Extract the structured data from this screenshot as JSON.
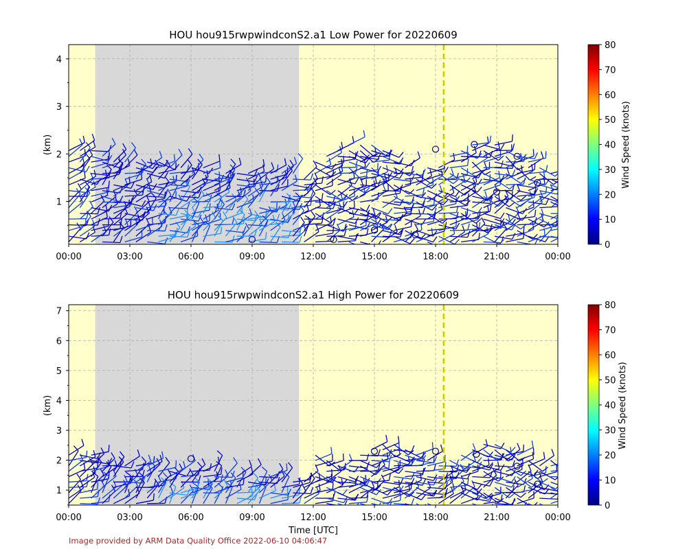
{
  "panels": [
    {
      "title": "HOU hou915rwpwindconS2.a1 Low Power for 20220609",
      "ylabel": "(km)",
      "colorbar_label": "Wind Speed (knots)"
    },
    {
      "title": "HOU hou915rwpwindconS2.a1 High Power for 20220609",
      "ylabel": "(km)",
      "colorbar_label": "Wind Speed (knots)"
    }
  ],
  "xlabel": "Time [UTC]",
  "credit": "Image provided by ARM Data Quality Office 2022-06-10 04:06:47",
  "colors": {
    "daylight": "#ffffcc",
    "night": "#d8d8d8",
    "marker_line": "#cccc00",
    "barb": "#0000cd"
  },
  "chart_data": [
    {
      "type": "wind_barbs",
      "title": "HOU hou915rwpwindconS2.a1 Low Power for 20220609",
      "xlabel": "",
      "ylabel": "(km)",
      "x_ticks": [
        "00:00",
        "03:00",
        "06:00",
        "09:00",
        "12:00",
        "15:00",
        "18:00",
        "21:00",
        "00:00"
      ],
      "y_ticks": [
        "1",
        "2",
        "3",
        "4"
      ],
      "xlim_hours": [
        0,
        24
      ],
      "ylim_km": [
        0.1,
        4.3
      ],
      "grid": true,
      "night_shading_hours": [
        1.3,
        11.3
      ],
      "vertical_marker_hours": 18.4,
      "colorbar": {
        "label": "Wind Speed (knots)",
        "range": [
          0,
          80
        ],
        "ticks": [
          "0",
          "10",
          "20",
          "30",
          "40",
          "50",
          "60",
          "70",
          "80"
        ],
        "cmap": "jet"
      }
    },
    {
      "type": "wind_barbs",
      "title": "HOU hou915rwpwindconS2.a1 High Power for 20220609",
      "xlabel": "Time [UTC]",
      "ylabel": "(km)",
      "x_ticks": [
        "00:00",
        "03:00",
        "06:00",
        "09:00",
        "12:00",
        "15:00",
        "18:00",
        "21:00",
        "00:00"
      ],
      "y_ticks": [
        "1",
        "2",
        "3",
        "4",
        "5",
        "6",
        "7"
      ],
      "xlim_hours": [
        0,
        24
      ],
      "ylim_km": [
        0.5,
        7.2
      ],
      "grid": true,
      "night_shading_hours": [
        1.3,
        11.3
      ],
      "vertical_marker_hours": 18.4,
      "colorbar": {
        "label": "Wind Speed (knots)",
        "range": [
          0,
          80
        ],
        "ticks": [
          "0",
          "10",
          "20",
          "30",
          "40",
          "50",
          "60",
          "70",
          "80"
        ],
        "cmap": "jet"
      }
    }
  ]
}
